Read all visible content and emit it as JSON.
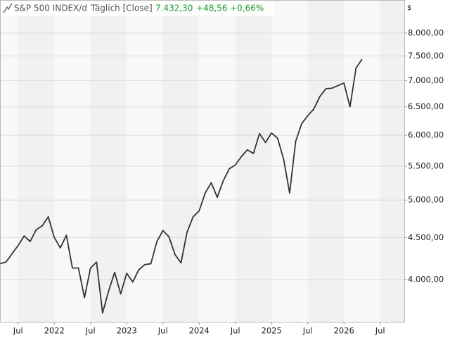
{
  "chart_data": {
    "type": "line",
    "title": "S&P 500 INDEX/d",
    "interval": "Täglich [Close]",
    "last": "7.432,30",
    "change": "+48,56",
    "change_pct": "+0,66%",
    "y_unit": "$",
    "log_scale": true,
    "grid": true,
    "x": [
      "2021-04",
      "2021-05",
      "2021-06",
      "2021-07",
      "2021-08",
      "2021-09",
      "2021-10",
      "2021-11",
      "2021-12",
      "2022-01",
      "2022-02",
      "2022-03",
      "2022-04",
      "2022-05",
      "2022-06",
      "2022-07",
      "2022-08",
      "2022-09",
      "2022-10",
      "2022-11",
      "2022-12",
      "2023-01",
      "2023-02",
      "2023-03",
      "2023-04",
      "2023-05",
      "2023-06",
      "2023-07",
      "2023-08",
      "2023-09",
      "2023-10",
      "2023-11",
      "2023-12",
      "2024-01",
      "2024-02",
      "2024-03",
      "2024-04",
      "2024-05",
      "2024-06",
      "2024-07",
      "2024-08",
      "2024-09",
      "2024-10",
      "2024-11",
      "2024-12",
      "2025-01",
      "2025-02",
      "2025-03",
      "2025-04",
      "2025-05",
      "2025-06",
      "2025-07",
      "2025-08",
      "2025-09",
      "2025-10",
      "2025-11",
      "2025-12",
      "2026-01",
      "2026-02",
      "2026-03",
      "2026-04"
    ],
    "series": [
      {
        "name": "S&P 500 INDEX/d",
        "color": "#333333",
        "values": [
          4180,
          4200,
          4300,
          4400,
          4520,
          4450,
          4600,
          4650,
          4770,
          4500,
          4370,
          4530,
          4130,
          4130,
          3800,
          4130,
          4200,
          3640,
          3870,
          4080,
          3840,
          4070,
          3970,
          4110,
          4170,
          4180,
          4450,
          4590,
          4510,
          4290,
          4190,
          4570,
          4770,
          4850,
          5100,
          5250,
          5040,
          5280,
          5460,
          5520,
          5650,
          5760,
          5700,
          6030,
          5880,
          6040,
          5950,
          5610,
          5100,
          5900,
          6200,
          6340,
          6460,
          6690,
          6840,
          6850,
          6900,
          6950,
          6500,
          7250,
          7432
        ]
      }
    ],
    "xlim": [
      "2021-04",
      "2026-11"
    ],
    "xticks": [
      {
        "value": "2021-07",
        "label": "Jul"
      },
      {
        "value": "2022-01",
        "label": "2022"
      },
      {
        "value": "2022-07",
        "label": "Jul"
      },
      {
        "value": "2023-01",
        "label": "2023"
      },
      {
        "value": "2023-07",
        "label": "Jul"
      },
      {
        "value": "2024-01",
        "label": "2024"
      },
      {
        "value": "2024-07",
        "label": "Jul"
      },
      {
        "value": "2025-01",
        "label": "2025"
      },
      {
        "value": "2025-07",
        "label": "Jul"
      },
      {
        "value": "2026-01",
        "label": "2026"
      },
      {
        "value": "2026-07",
        "label": "Jul"
      }
    ],
    "ylim": [
      3550,
      8780
    ],
    "yticks": [
      {
        "value": 4000,
        "label": "4.000,00"
      },
      {
        "value": 4500,
        "label": "4.500,00"
      },
      {
        "value": 5000,
        "label": "5.000,00"
      },
      {
        "value": 5500,
        "label": "5.500,00"
      },
      {
        "value": 6000,
        "label": "6.000,00"
      },
      {
        "value": 6500,
        "label": "6.500,00"
      },
      {
        "value": 7000,
        "label": "7.000,00"
      },
      {
        "value": 7500,
        "label": "7.500,00"
      },
      {
        "value": 8000,
        "label": "8.000,00"
      }
    ]
  }
}
